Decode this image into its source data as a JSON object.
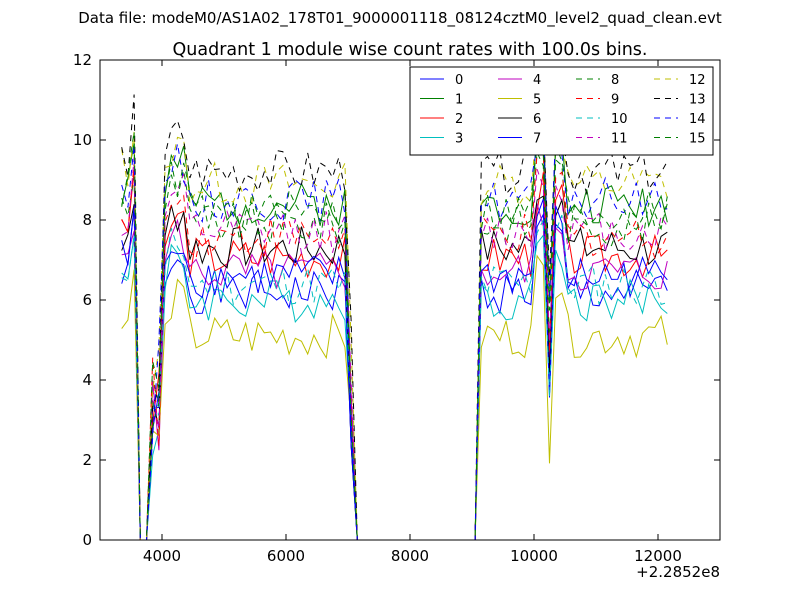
{
  "header": {
    "file_label": "Data file: modeM0/AS1A02_178T01_9000001118_08124cztM0_level2_quad_clean.evt"
  },
  "chart_data": {
    "type": "line",
    "title": "Quadrant 1 module wise count rates with 100.0s bins.",
    "xlabel": "",
    "ylabel": "",
    "x_offset_label": "+2.2852e8",
    "xlim": [
      3000,
      13000
    ],
    "ylim": [
      0,
      12
    ],
    "xticks": [
      4000,
      6000,
      8000,
      10000,
      12000
    ],
    "yticks": [
      0,
      2,
      4,
      6,
      8,
      10,
      12
    ],
    "grid": false,
    "legend_position": "top-right",
    "bin_width_s": 100,
    "x_start": 3350,
    "series": [
      {
        "name": "0",
        "color": "#0000ff",
        "dash": "solid",
        "base": 6.2,
        "values_seed": 1
      },
      {
        "name": "1",
        "color": "#008000",
        "dash": "solid",
        "base": 8.4,
        "values_seed": 2
      },
      {
        "name": "2",
        "color": "#ff0000",
        "dash": "solid",
        "base": 7.1,
        "values_seed": 3
      },
      {
        "name": "3",
        "color": "#00bfbf",
        "dash": "solid",
        "base": 6.0,
        "values_seed": 4
      },
      {
        "name": "4",
        "color": "#bf00bf",
        "dash": "solid",
        "base": 6.7,
        "values_seed": 5
      },
      {
        "name": "5",
        "color": "#bfbf00",
        "dash": "solid",
        "base": 5.1,
        "values_seed": 6
      },
      {
        "name": "6",
        "color": "#000000",
        "dash": "solid",
        "base": 7.3,
        "values_seed": 7
      },
      {
        "name": "7",
        "color": "#0000ff",
        "dash": "solid",
        "base": 6.6,
        "values_seed": 8
      },
      {
        "name": "8",
        "color": "#008000",
        "dash": "dashed",
        "base": 7.9,
        "values_seed": 9
      },
      {
        "name": "9",
        "color": "#ff0000",
        "dash": "dashed",
        "base": 7.6,
        "values_seed": 10
      },
      {
        "name": "10",
        "color": "#00bfbf",
        "dash": "dashed",
        "base": 6.4,
        "values_seed": 11
      },
      {
        "name": "11",
        "color": "#bf00bf",
        "dash": "dashed",
        "base": 7.7,
        "values_seed": 12
      },
      {
        "name": "12",
        "color": "#bfbf00",
        "dash": "dashed",
        "base": 8.9,
        "values_seed": 13
      },
      {
        "name": "13",
        "color": "#000000",
        "dash": "dashed",
        "base": 9.2,
        "values_seed": 14
      },
      {
        "name": "14",
        "color": "#0000ff",
        "dash": "dashed",
        "base": 8.5,
        "values_seed": 15
      },
      {
        "name": "15",
        "color": "#008000",
        "dash": "dashed",
        "base": 8.2,
        "values_seed": 16
      }
    ],
    "segments": [
      {
        "from": 3350,
        "to": 3550,
        "state": "on"
      },
      {
        "from": 3650,
        "to": 3750,
        "state": "off"
      },
      {
        "from": 4050,
        "to": 6950,
        "state": "on"
      },
      {
        "from": 7150,
        "to": 9050,
        "state": "off"
      },
      {
        "from": 9150,
        "to": 12150,
        "state": "on"
      }
    ]
  }
}
